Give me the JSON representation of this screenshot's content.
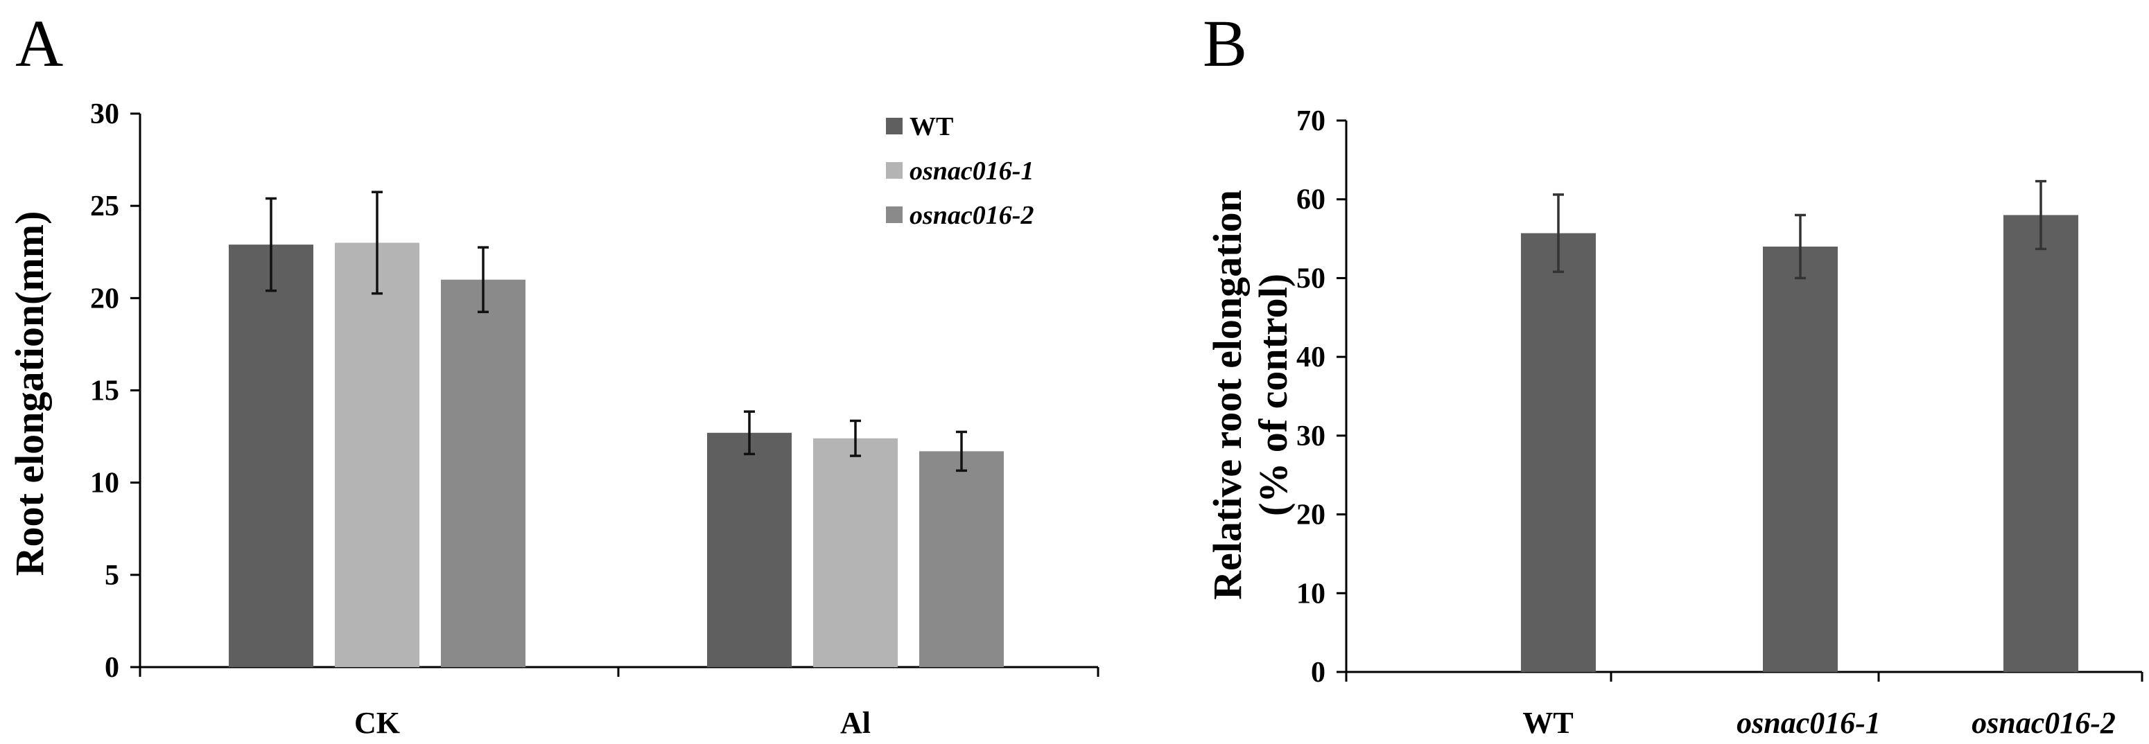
{
  "panels": {
    "a": {
      "letter": "A"
    },
    "b": {
      "letter": "B"
    }
  },
  "colors": {
    "wt": "#5f5f5f",
    "osnac016_1": "#b4b4b4",
    "osnac016_2": "#8a8a8a",
    "error": "#111111",
    "error_b": "#333333",
    "axis": "#000000"
  },
  "chart_data": [
    {
      "id": "A",
      "type": "bar",
      "title": "",
      "xlabel": "",
      "ylabel": "Root elongation(mm)",
      "ylim": [
        0,
        30
      ],
      "yticks": [
        0,
        5,
        10,
        15,
        20,
        25,
        30
      ],
      "categories": [
        "CK",
        "Al"
      ],
      "legend_position": "top-right",
      "series": [
        {
          "name": "WT",
          "italic": false,
          "color_key": "wt",
          "values": [
            22.9,
            12.7
          ],
          "errors": [
            2.5,
            1.15
          ]
        },
        {
          "name": "osnac016-1",
          "italic": true,
          "color_key": "osnac016_1",
          "values": [
            23.0,
            12.4
          ],
          "errors": [
            2.75,
            0.95
          ]
        },
        {
          "name": "osnac016-2",
          "italic": true,
          "color_key": "osnac016_2",
          "values": [
            21.0,
            11.7
          ],
          "errors": [
            1.75,
            1.05
          ]
        }
      ]
    },
    {
      "id": "B",
      "type": "bar",
      "title": "",
      "xlabel": "",
      "ylabel_lines": [
        "Relative root elongation",
        "(% of control)"
      ],
      "ylim": [
        0,
        70
      ],
      "yticks": [
        0,
        10,
        20,
        30,
        40,
        50,
        60,
        70
      ],
      "categories": [
        "WT",
        "osnac016-1",
        "osnac016-2"
      ],
      "categories_italic": [
        false,
        true,
        true
      ],
      "values": [
        55.7,
        54.0,
        58.0
      ],
      "errors": [
        4.9,
        4.0,
        4.3
      ],
      "color_key": "wt"
    }
  ]
}
